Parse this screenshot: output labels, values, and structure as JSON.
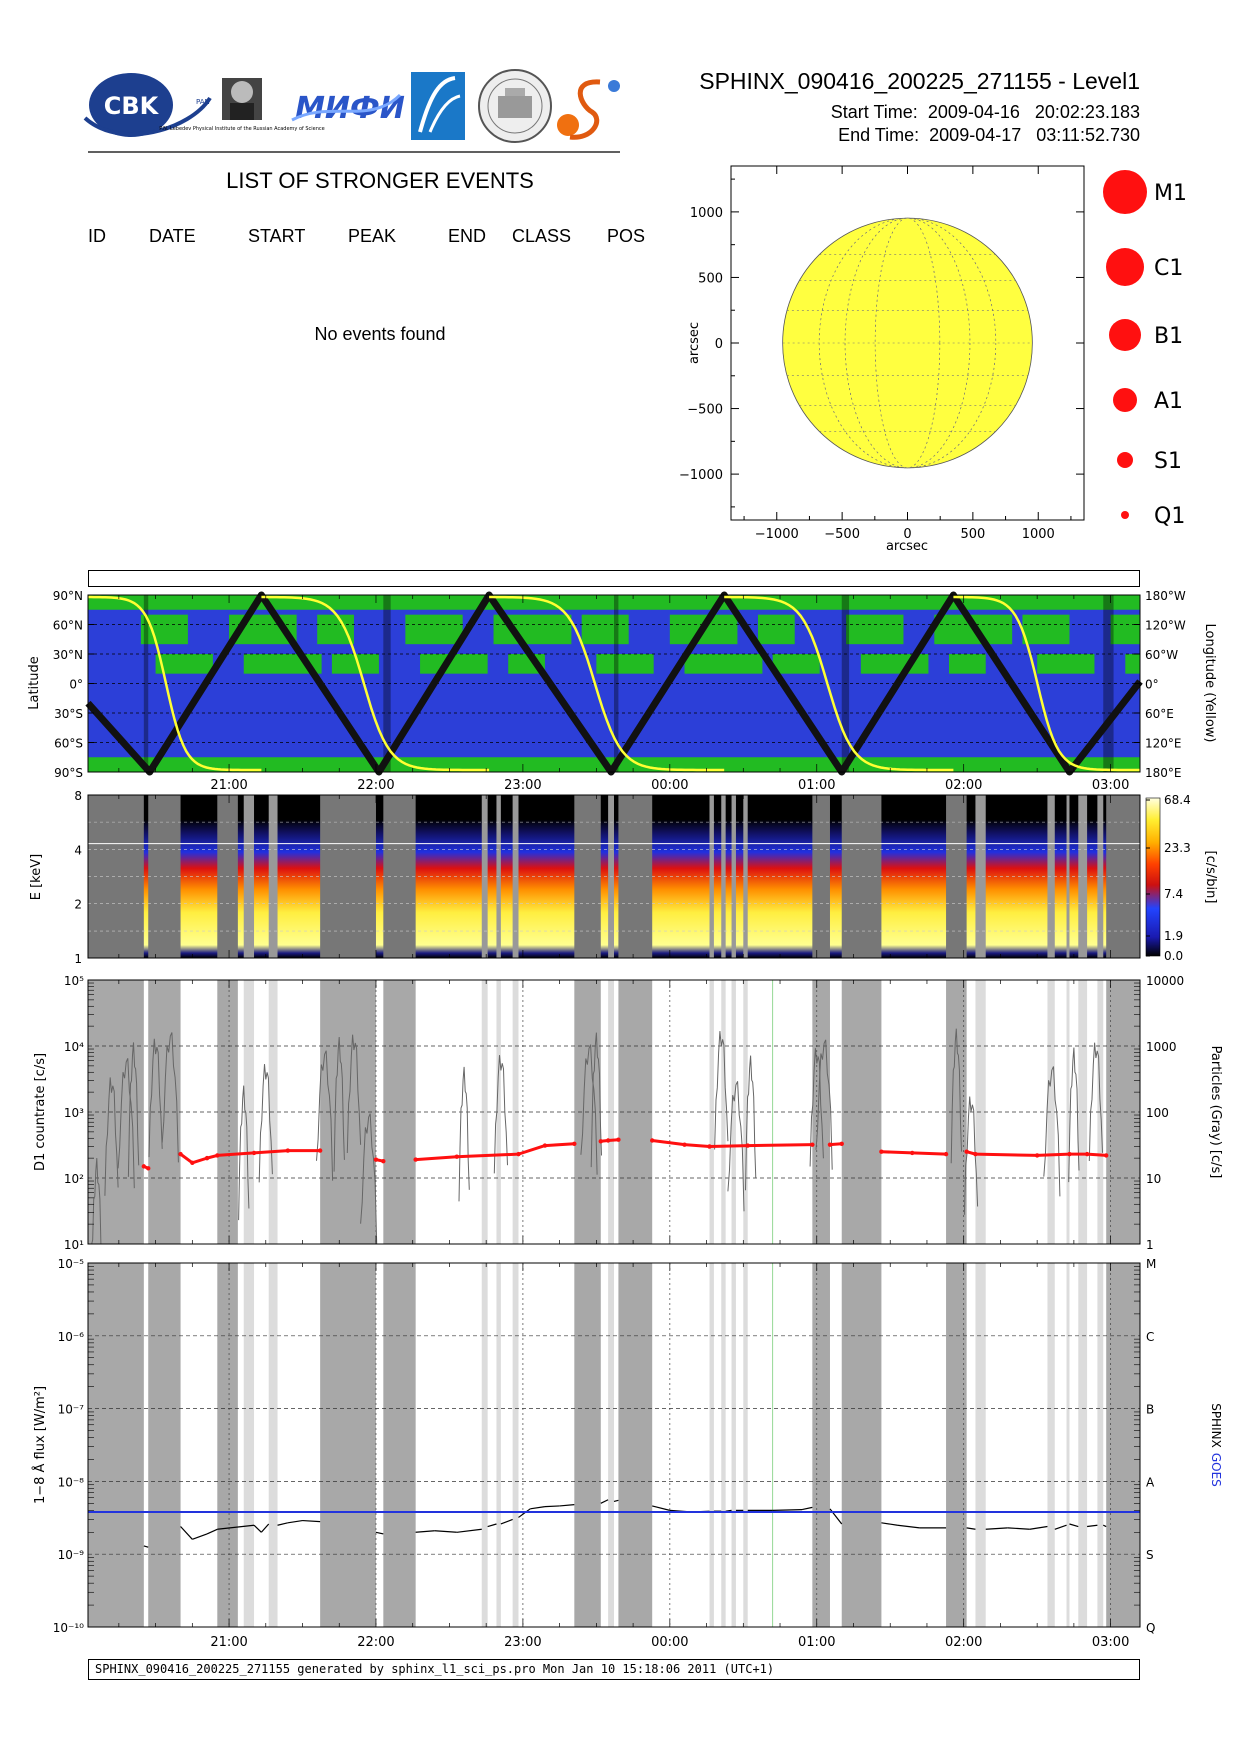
{
  "header": {
    "title": "SPHINX_090416_200225_271155 - Level1",
    "start_label": "Start Time:",
    "start_value": "2009-04-16   20:02:23.183",
    "end_label": "End Time:",
    "end_value": "2009-04-17   03:11:52.730"
  },
  "logos": {
    "cbk_text": "CBK",
    "cbk_sub": "PAN",
    "lebedev_caption": "P.N. Lebedev Physical Institute of the Russian Academy of Science",
    "mifi_text": "МИФИ"
  },
  "events": {
    "title": "LIST OF STRONGER EVENTS",
    "columns": [
      "ID",
      "DATE",
      "START",
      "PEAK",
      "END",
      "CLASS",
      "POS"
    ],
    "empty_message": "No events found"
  },
  "sun_map": {
    "xlabel": "arcsec",
    "ylabel": "arcsec",
    "xticks": [
      "−1000",
      "−500",
      "0",
      "500",
      "1000"
    ],
    "yticks": [
      "1000",
      "500",
      "0",
      "−500",
      "−1000"
    ],
    "xlim": [
      -1350,
      1350
    ],
    "ylim": [
      -1350,
      1350
    ],
    "disk_radius": 955,
    "disk_color": "#ffff40",
    "legend": [
      {
        "label": "M1",
        "size": 22
      },
      {
        "label": "C1",
        "size": 19
      },
      {
        "label": "B1",
        "size": 16
      },
      {
        "label": "A1",
        "size": 12
      },
      {
        "label": "S1",
        "size": 8
      },
      {
        "label": "Q1",
        "size": 4
      }
    ]
  },
  "time_axis": {
    "tick_labels": [
      "21:00",
      "22:00",
      "23:00",
      "00:00",
      "01:00",
      "02:00",
      "03:00"
    ],
    "start_hour": 20.04,
    "end_hour": 27.2
  },
  "orbit_panel": {
    "ylabel_left": "Latitude",
    "ylabel_right": "Longitude (Yellow)",
    "left_ticks": [
      "90°N",
      "60°N",
      "30°N",
      "0°",
      "30°S",
      "60°S",
      "90°S"
    ],
    "right_ticks": [
      "180°W",
      "120°W",
      "60°W",
      "0°",
      "60°E",
      "120°E",
      "180°E"
    ],
    "colors": {
      "ocean": "#2c3fd8",
      "land": "#22bb22",
      "track": "#111111",
      "longitude": "#ffff33"
    }
  },
  "spectrogram": {
    "ylabel": "E [keV]",
    "yticks": [
      "8",
      "4",
      "2",
      "1"
    ],
    "colorbar_label": "[c/s/bin]",
    "colorbar_ticks": [
      "68.4",
      "23.3",
      "7.4",
      "1.9",
      "0.0"
    ]
  },
  "countrate": {
    "ylabel_left": "D1 countrate [c/s]",
    "ylabel_right": "Particles (Gray) [c/s]",
    "left_ticks": [
      "10⁵",
      "10⁴",
      "10³",
      "10²",
      "10¹"
    ],
    "right_ticks": [
      "10000",
      "1000",
      "100",
      "10",
      "1"
    ]
  },
  "flux": {
    "ylabel_left": "1−8 Å flux [W/m²]",
    "ylabel_right_sphinx": "SPHINX",
    "ylabel_right_goes": "GOES",
    "goes_color": "#2233dd",
    "left_ticks": [
      "10⁻⁵",
      "10⁻⁶",
      "10⁻⁷",
      "10⁻⁸",
      "10⁻⁹",
      "10⁻¹⁰"
    ],
    "right_ticks": [
      "M",
      "C",
      "B",
      "A",
      "S",
      "Q"
    ]
  },
  "chart_data": {
    "type": "line",
    "x_unit": "UTC time (2009-04-16 20:02 to 2009-04-17 03:12)",
    "gaps_hours": [
      [
        20.04,
        20.42
      ],
      [
        20.45,
        20.67
      ],
      [
        20.92,
        21.06
      ],
      [
        21.1,
        21.17
      ],
      [
        21.27,
        21.33
      ],
      [
        21.62,
        22.0
      ],
      [
        22.05,
        22.27
      ],
      [
        22.72,
        22.76
      ],
      [
        22.82,
        22.85
      ],
      [
        22.93,
        22.97
      ],
      [
        23.35,
        23.53
      ],
      [
        23.58,
        23.62
      ],
      [
        23.65,
        23.88
      ],
      [
        24.27,
        24.3
      ],
      [
        24.35,
        24.38
      ],
      [
        24.42,
        24.45
      ],
      [
        24.5,
        24.53
      ],
      [
        24.97,
        25.09
      ],
      [
        25.17,
        25.44
      ],
      [
        25.88,
        26.02
      ],
      [
        26.08,
        26.15
      ],
      [
        26.57,
        26.62
      ],
      [
        26.7,
        26.72
      ],
      [
        26.78,
        26.84
      ],
      [
        26.91,
        26.95
      ],
      [
        26.97,
        27.2
      ]
    ],
    "series": [
      {
        "name": "SPHINX",
        "unit": "W/m²",
        "x_hours": [
          20.42,
          20.45,
          20.67,
          20.75,
          20.85,
          20.92,
          21.17,
          21.22,
          21.27,
          21.33,
          21.4,
          21.5,
          21.62,
          22.0,
          22.05,
          22.27,
          22.4,
          22.55,
          22.72,
          22.76,
          22.82,
          22.85,
          22.93,
          22.97,
          23.05,
          23.15,
          23.25,
          23.35,
          23.53,
          23.58,
          23.62,
          23.65,
          23.88,
          24.0,
          24.15,
          24.27,
          24.3,
          24.35,
          24.38,
          24.42,
          24.45,
          24.5,
          24.53,
          24.7,
          24.9,
          24.97,
          25.09,
          25.17,
          25.44,
          25.55,
          25.7,
          25.88,
          26.02,
          26.08,
          26.15,
          26.3,
          26.45,
          26.57,
          26.62,
          26.7,
          26.72,
          26.78,
          26.84,
          26.91,
          26.95,
          26.97
        ],
        "y": [
          1.3e-09,
          1.25e-09,
          2.4e-09,
          1.6e-09,
          1.9e-09,
          2.2e-09,
          2.5e-09,
          2e-09,
          2.6e-09,
          2.5e-09,
          2.7e-09,
          2.9e-09,
          2.8e-09,
          2e-09,
          1.9e-09,
          2e-09,
          2.1e-09,
          2e-09,
          2.2e-09,
          2.4e-09,
          2.6e-09,
          2.6e-09,
          3e-09,
          3.2e-09,
          4.2e-09,
          4.5e-09,
          4.6e-09,
          4.8e-09,
          5e-09,
          5.6e-09,
          5.3e-09,
          5.5e-09,
          4.6e-09,
          4e-09,
          3.8e-09,
          3.9e-09,
          3.9e-09,
          3.9e-09,
          3.9e-09,
          4e-09,
          4e-09,
          4e-09,
          4e-09,
          4e-09,
          4.1e-09,
          4.4e-09,
          4.2e-09,
          2.6e-09,
          2.7e-09,
          2.5e-09,
          2.3e-09,
          2.3e-09,
          2.3e-09,
          2.2e-09,
          2.2e-09,
          2.3e-09,
          2.2e-09,
          2.4e-09,
          2.2e-09,
          2.5e-09,
          2.6e-09,
          2.4e-09,
          2.4e-09,
          2.5e-09,
          2.5e-09,
          2.4e-09
        ]
      },
      {
        "name": "GOES",
        "unit": "W/m²",
        "x_hours": [
          20.04,
          27.2
        ],
        "y": [
          3.8e-09,
          3.8e-09
        ]
      },
      {
        "name": "D1 countrate",
        "unit": "c/s",
        "x_hours": [
          20.42,
          20.45,
          20.67,
          20.75,
          20.85,
          20.92,
          21.17,
          21.4,
          21.62,
          22.0,
          22.05,
          22.27,
          22.55,
          22.97,
          23.15,
          23.35,
          23.53,
          23.58,
          23.65,
          23.88,
          24.1,
          24.27,
          24.53,
          24.97,
          25.09,
          25.17,
          25.44,
          25.65,
          25.88,
          26.02,
          26.08,
          26.5,
          26.72,
          26.84,
          26.97
        ],
        "y": [
          150,
          140,
          230,
          170,
          200,
          220,
          240,
          260,
          260,
          190,
          180,
          190,
          210,
          230,
          310,
          330,
          360,
          370,
          380,
          370,
          320,
          300,
          310,
          320,
          320,
          330,
          250,
          240,
          230,
          250,
          230,
          220,
          230,
          230,
          220
        ]
      }
    ],
    "flux_ylim": [
      1e-10,
      1e-05
    ],
    "countrate_ylim": [
      10,
      100000
    ],
    "goes_class_levels": {
      "Q": 1e-10,
      "S": 1e-09,
      "A": 1e-08,
      "B": 1e-07,
      "C": 1e-06,
      "M": 1e-05
    }
  },
  "footer": "SPHINX_090416_200225_271155 generated by sphinx_l1_sci_ps.pro Mon Jan 10 15:18:06 2011 (UTC+1)"
}
